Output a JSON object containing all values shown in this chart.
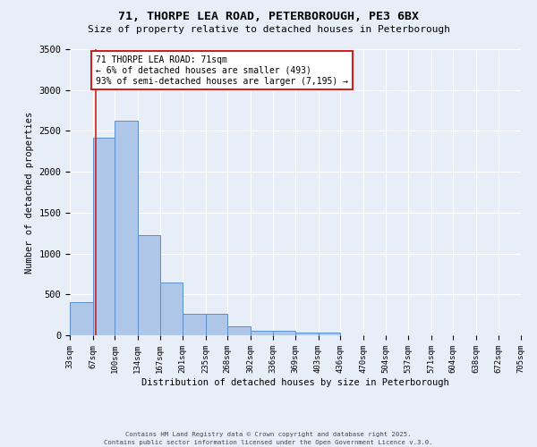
{
  "title1": "71, THORPE LEA ROAD, PETERBOROUGH, PE3 6BX",
  "title2": "Size of property relative to detached houses in Peterborough",
  "xlabel": "Distribution of detached houses by size in Peterborough",
  "ylabel": "Number of detached properties",
  "bin_edges": [
    33,
    67,
    100,
    134,
    167,
    201,
    235,
    268,
    302,
    336,
    369,
    403,
    436,
    470,
    504,
    537,
    571,
    604,
    638,
    672,
    705
  ],
  "bar_heights": [
    400,
    2420,
    2620,
    1230,
    640,
    260,
    260,
    110,
    60,
    60,
    35,
    35,
    0,
    0,
    0,
    0,
    0,
    0,
    0,
    0
  ],
  "bar_color": "#aec6e8",
  "bar_edge_color": "#5b8fc9",
  "bg_color": "#e8eef8",
  "grid_color": "#ffffff",
  "vline_x": 71,
  "vline_color": "#cc2222",
  "ylim": [
    0,
    3500
  ],
  "yticks": [
    0,
    500,
    1000,
    1500,
    2000,
    2500,
    3000,
    3500
  ],
  "annotation_title": "71 THORPE LEA ROAD: 71sqm",
  "annotation_line1": "← 6% of detached houses are smaller (493)",
  "annotation_line2": "93% of semi-detached houses are larger (7,195) →",
  "annotation_box_color": "#ffffff",
  "annotation_edge_color": "#cc2222",
  "footer1": "Contains HM Land Registry data © Crown copyright and database right 2025.",
  "footer2": "Contains public sector information licensed under the Open Government Licence v.3.0."
}
